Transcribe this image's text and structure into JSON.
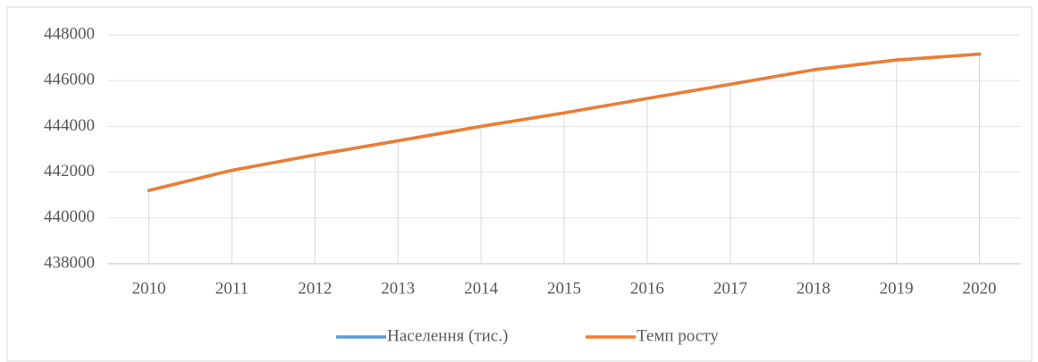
{
  "chart_data": {
    "type": "line",
    "categories": [
      "2010",
      "2011",
      "2012",
      "2013",
      "2014",
      "2015",
      "2016",
      "2017",
      "2018",
      "2019",
      "2020"
    ],
    "series": [
      {
        "name": "Населення (тис.)",
        "color": "#5b9bd5",
        "values": [
          441200,
          442080,
          442750,
          443370,
          444000,
          444590,
          445220,
          445840,
          446470,
          446900,
          447160
        ]
      },
      {
        "name": "Темп росту",
        "color": "#ed7d31",
        "values": [
          441200,
          442080,
          442750,
          443370,
          444000,
          444590,
          445220,
          445840,
          446470,
          446900,
          447160
        ]
      }
    ],
    "ylim": [
      438000,
      448000
    ],
    "yticks": [
      438000,
      440000,
      442000,
      444000,
      446000,
      448000
    ],
    "grid": true,
    "legend": "bottom"
  }
}
